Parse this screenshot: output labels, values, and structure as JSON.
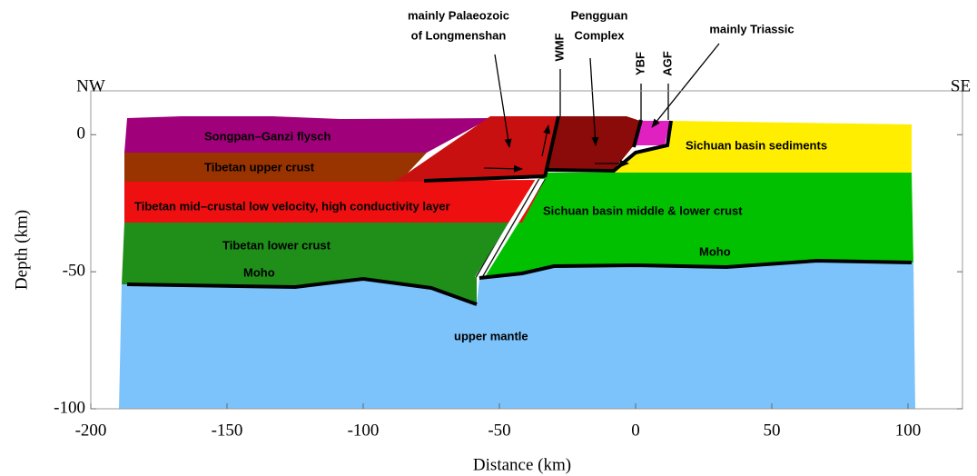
{
  "axes": {
    "xlim": [
      -200,
      120
    ],
    "ylim": [
      -100,
      16
    ],
    "xticks": [
      -200,
      -150,
      -100,
      -50,
      0,
      50,
      100
    ],
    "yticks": [
      0,
      -50,
      -100
    ],
    "xlabel": "Distance (km)",
    "ylabel": "Depth (km)"
  },
  "directions": {
    "left": "NW",
    "right": "SE"
  },
  "layers": {
    "songpan": "Songpan–Ganzi flysch",
    "tibet_upper": "Tibetan upper crust",
    "tibet_mid": "Tibetan mid–crustal low velocity, high conductivity layer",
    "tibet_lower": "Tibetan lower crust",
    "sichuan_sed": "Sichuan basin sediments",
    "sichuan_lower": "Sichuan basin middle & lower crust",
    "mantle": "upper mantle",
    "moho_left": "Moho",
    "moho_right": "Moho"
  },
  "annotations": {
    "palaeozoic_1": "mainly Palaeozoic",
    "palaeozoic_2": "of Longmenshan",
    "pengguan_1": "Pengguan",
    "pengguan_2": "Complex",
    "triassic": "mainly Triassic",
    "wmf": "WMF",
    "ybf": "YBF",
    "agf": "AGF"
  }
}
